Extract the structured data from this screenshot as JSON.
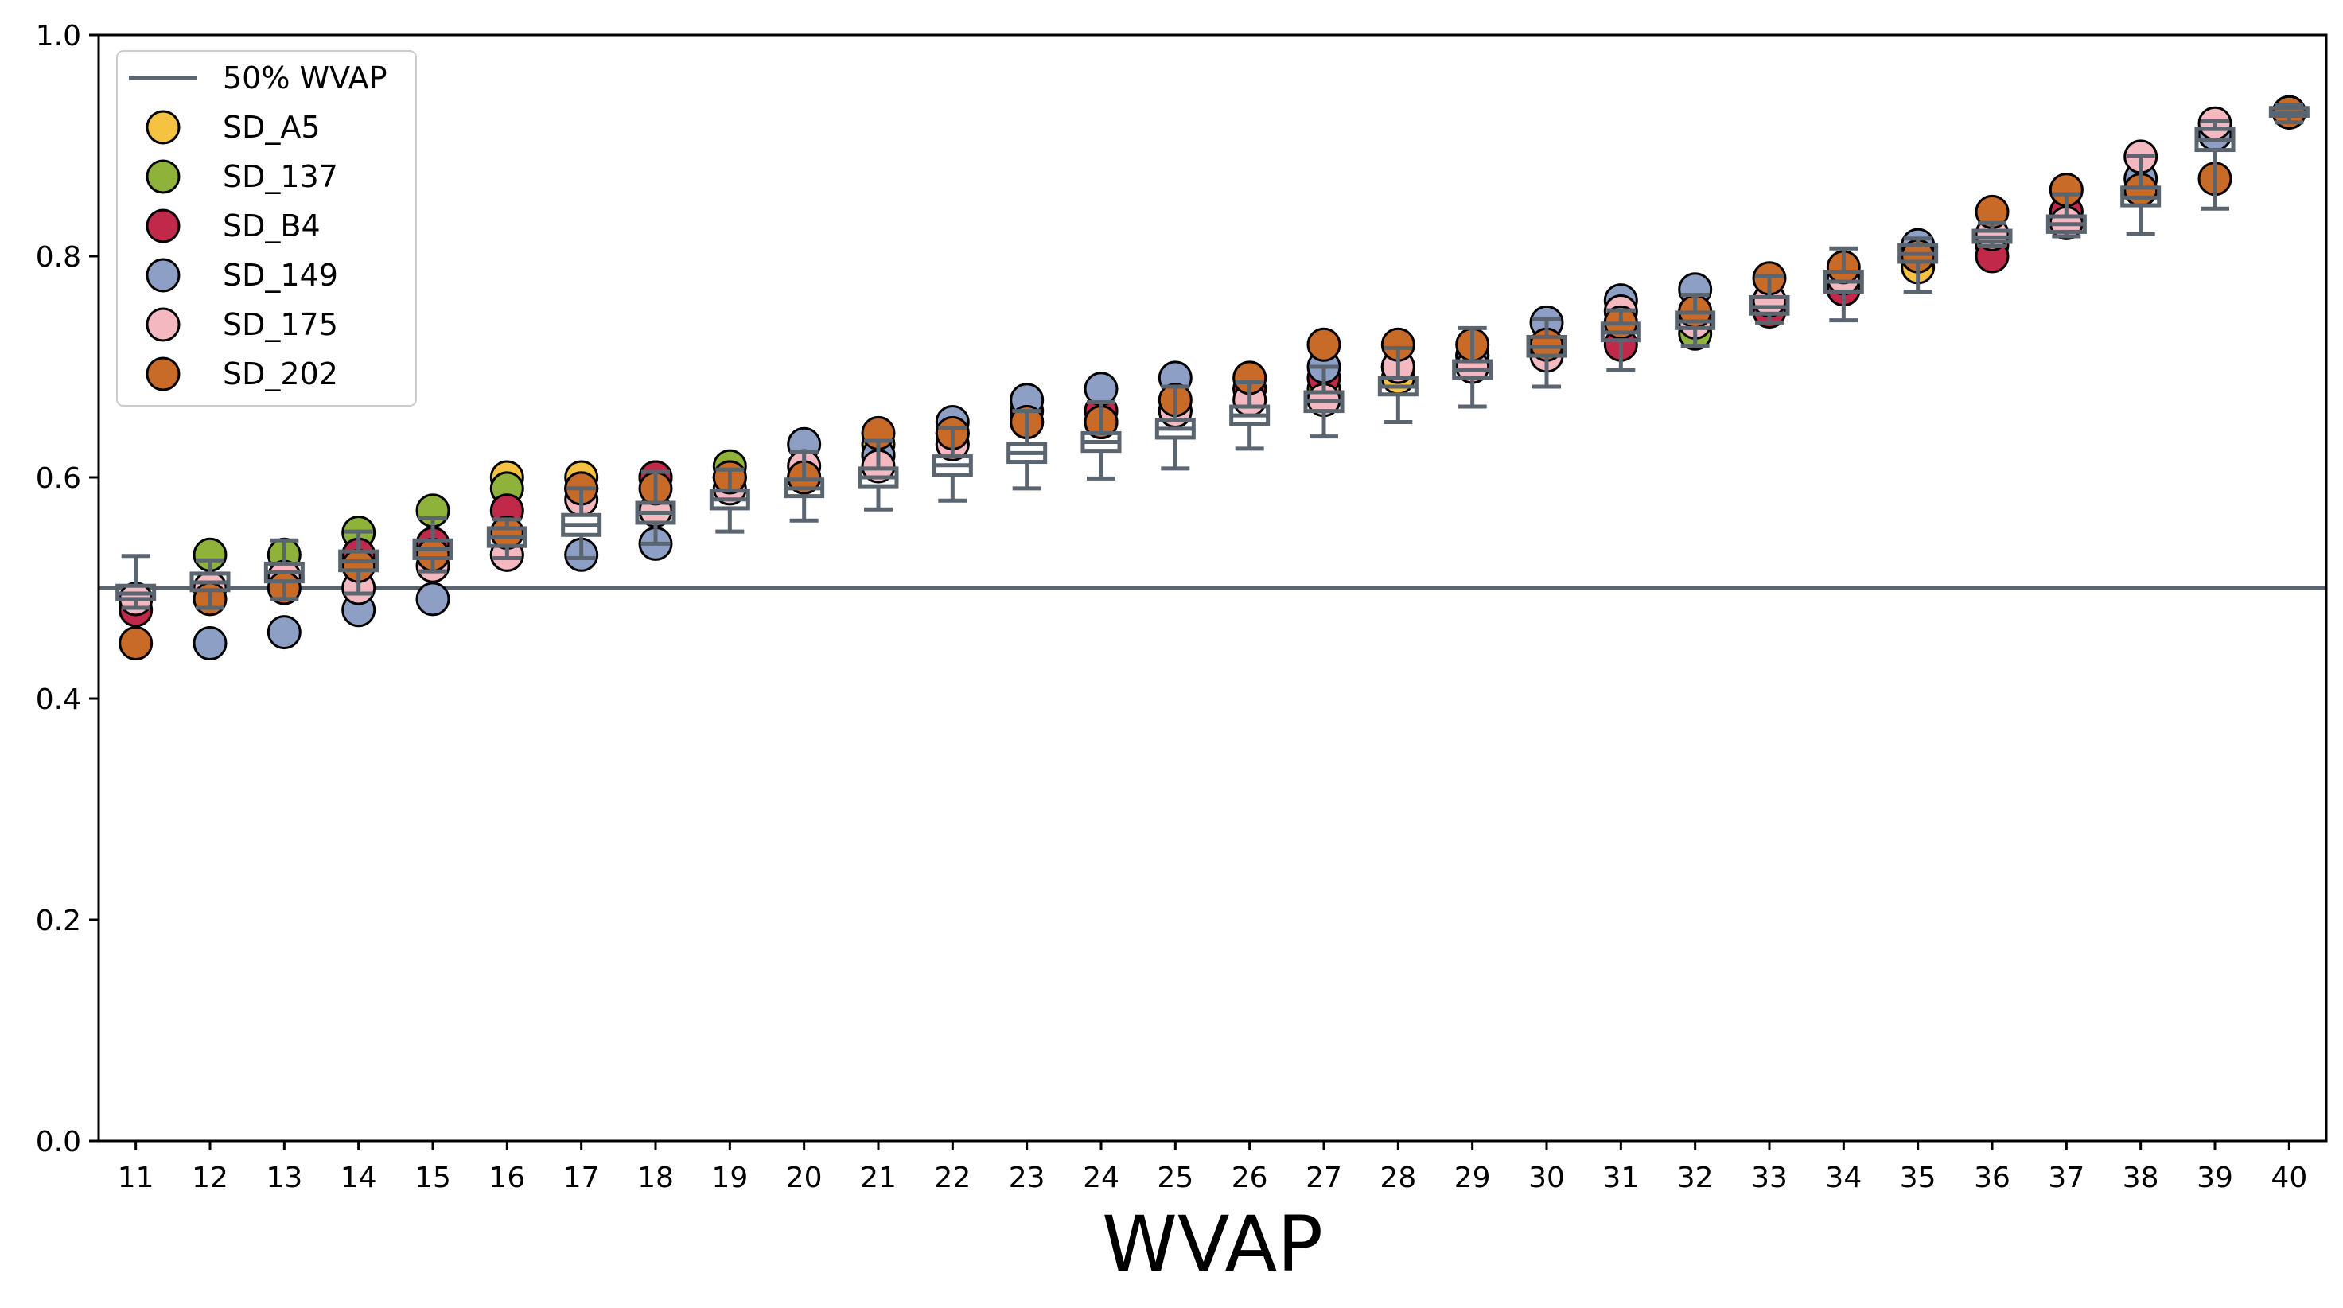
{
  "chart_data": {
    "type": "scatter",
    "xlabel": "WVAP",
    "ylabel": "",
    "x": [
      11,
      12,
      13,
      14,
      15,
      16,
      17,
      18,
      19,
      20,
      21,
      22,
      23,
      24,
      25,
      26,
      27,
      28,
      29,
      30,
      31,
      32,
      33,
      34,
      35,
      36,
      37,
      38,
      39,
      40
    ],
    "xlim": [
      10.5,
      40.5
    ],
    "ylim": [
      0.0,
      1.0
    ],
    "yticks": [
      "0.0",
      "0.2",
      "0.4",
      "0.6",
      "0.8",
      "1.0"
    ],
    "reference_line": {
      "label": "50% WVAP",
      "y": 0.5,
      "color": "#5a6570"
    },
    "legend_position": "upper-left",
    "grid": false,
    "series": [
      {
        "name": "SD_A5",
        "color": "#f5c242",
        "values": [
          0.49,
          0.5,
          0.51,
          0.53,
          0.53,
          0.6,
          0.6,
          0.6,
          0.6,
          0.6,
          0.63,
          0.64,
          0.65,
          0.65,
          0.66,
          0.68,
          0.68,
          0.69,
          0.7,
          0.72,
          0.74,
          0.74,
          0.76,
          0.77,
          0.79,
          0.81,
          0.83,
          0.86,
          0.91,
          0.93
        ]
      },
      {
        "name": "SD_137",
        "color": "#8fb33a",
        "values": [
          0.49,
          0.53,
          0.53,
          0.55,
          0.57,
          0.59,
          0.59,
          0.6,
          0.61,
          0.6,
          0.62,
          0.63,
          0.65,
          0.66,
          0.66,
          0.68,
          0.69,
          0.7,
          0.71,
          0.72,
          0.74,
          0.73,
          0.76,
          0.78,
          0.8,
          0.82,
          0.84,
          0.86,
          0.91,
          0.93
        ]
      },
      {
        "name": "SD_B4",
        "color": "#c0294a",
        "values": [
          0.48,
          0.5,
          0.51,
          0.53,
          0.54,
          0.57,
          0.59,
          0.6,
          0.6,
          0.6,
          0.62,
          0.64,
          0.66,
          0.66,
          0.66,
          0.68,
          0.69,
          0.7,
          0.71,
          0.72,
          0.72,
          0.75,
          0.75,
          0.77,
          0.8,
          0.8,
          0.84,
          0.86,
          0.91,
          0.93
        ]
      },
      {
        "name": "SD_149",
        "color": "#8e9fc5",
        "values": [
          0.49,
          0.45,
          0.46,
          0.48,
          0.49,
          0.53,
          0.53,
          0.54,
          0.6,
          0.63,
          0.62,
          0.65,
          0.67,
          0.68,
          0.69,
          0.69,
          0.7,
          0.7,
          0.71,
          0.74,
          0.76,
          0.77,
          0.76,
          0.78,
          0.81,
          0.82,
          0.86,
          0.87,
          0.91,
          0.93
        ]
      },
      {
        "name": "SD_175",
        "color": "#f4b8c0",
        "values": [
          0.49,
          0.5,
          0.51,
          0.5,
          0.52,
          0.53,
          0.58,
          0.57,
          0.59,
          0.61,
          0.61,
          0.63,
          0.65,
          0.65,
          0.66,
          0.67,
          0.67,
          0.7,
          0.7,
          0.71,
          0.75,
          0.74,
          0.76,
          0.78,
          0.8,
          0.82,
          0.83,
          0.89,
          0.92,
          0.93
        ]
      },
      {
        "name": "SD_202",
        "color": "#c96b28",
        "values": [
          0.45,
          0.49,
          0.5,
          0.52,
          0.53,
          0.55,
          0.59,
          0.59,
          0.6,
          0.6,
          0.64,
          0.64,
          0.65,
          0.65,
          0.67,
          0.69,
          0.72,
          0.72,
          0.72,
          0.72,
          0.74,
          0.75,
          0.78,
          0.79,
          0.8,
          0.84,
          0.86,
          0.86,
          0.87,
          0.93
        ]
      }
    ],
    "boxplot": {
      "color": "#5a6570",
      "median": [
        0.495,
        0.505,
        0.514,
        0.524,
        0.535,
        0.546,
        0.557,
        0.568,
        0.58,
        0.59,
        0.6,
        0.611,
        0.622,
        0.632,
        0.644,
        0.656,
        0.669,
        0.682,
        0.697,
        0.718,
        0.731,
        0.741,
        0.754,
        0.777,
        0.802,
        0.817,
        0.829,
        0.853,
        0.905,
        0.93
      ],
      "q1": [
        0.49,
        0.498,
        0.506,
        0.516,
        0.527,
        0.538,
        0.548,
        0.559,
        0.572,
        0.583,
        0.592,
        0.602,
        0.614,
        0.624,
        0.636,
        0.648,
        0.66,
        0.675,
        0.69,
        0.71,
        0.724,
        0.735,
        0.748,
        0.768,
        0.795,
        0.813,
        0.822,
        0.846,
        0.896,
        0.927
      ],
      "q3": [
        0.502,
        0.513,
        0.522,
        0.533,
        0.543,
        0.554,
        0.566,
        0.577,
        0.588,
        0.598,
        0.608,
        0.619,
        0.63,
        0.64,
        0.652,
        0.664,
        0.677,
        0.69,
        0.705,
        0.727,
        0.739,
        0.749,
        0.763,
        0.786,
        0.81,
        0.823,
        0.836,
        0.862,
        0.915,
        0.934
      ],
      "whisker_low": [
        0.482,
        0.482,
        0.49,
        0.495,
        0.515,
        0.527,
        0.527,
        0.54,
        0.551,
        0.561,
        0.571,
        0.579,
        0.59,
        0.599,
        0.608,
        0.626,
        0.637,
        0.65,
        0.664,
        0.682,
        0.697,
        0.719,
        0.74,
        0.742,
        0.768,
        0.809,
        0.818,
        0.82,
        0.843,
        0.921
      ],
      "whisker_high": [
        0.529,
        0.525,
        0.543,
        0.551,
        0.563,
        0.562,
        0.59,
        0.605,
        0.607,
        0.623,
        0.633,
        0.645,
        0.66,
        0.668,
        0.682,
        0.686,
        0.7,
        0.717,
        0.735,
        0.743,
        0.751,
        0.765,
        0.782,
        0.807,
        0.816,
        0.83,
        0.856,
        0.891,
        0.922,
        0.937
      ]
    }
  }
}
